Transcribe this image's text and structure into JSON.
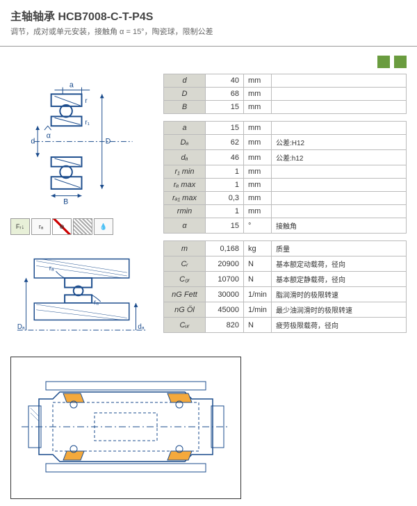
{
  "header": {
    "title_prefix": "主轴轴承 ",
    "title_model": "HCB7008-C-T-P4S",
    "subtitle": "调节，成对或单元安装，接触角 α = 15°，陶瓷球，限制公差"
  },
  "tables": {
    "main_dims": [
      {
        "sym": "d",
        "val": "40",
        "unit": "mm",
        "desc": ""
      },
      {
        "sym": "D",
        "val": "68",
        "unit": "mm",
        "desc": ""
      },
      {
        "sym": "B",
        "val": "15",
        "unit": "mm",
        "desc": ""
      }
    ],
    "secondary_dims": [
      {
        "sym": "a",
        "val": "15",
        "unit": "mm",
        "desc": ""
      },
      {
        "sym": "Dₐ",
        "val": "62",
        "unit": "mm",
        "desc": "公差:H12"
      },
      {
        "sym": "dₐ",
        "val": "46",
        "unit": "mm",
        "desc": "公差:h12"
      },
      {
        "sym": "r₁ min",
        "val": "1",
        "unit": "mm",
        "desc": ""
      },
      {
        "sym": "rₐ max",
        "val": "1",
        "unit": "mm",
        "desc": ""
      },
      {
        "sym": "rₐ₁ max",
        "val": "0,3",
        "unit": "mm",
        "desc": ""
      },
      {
        "sym": "rmin",
        "val": "1",
        "unit": "mm",
        "desc": ""
      },
      {
        "sym": "α",
        "val": "15",
        "unit": "°",
        "desc": "接触角"
      }
    ],
    "performance": [
      {
        "sym": "m",
        "val": "0,168",
        "unit": "kg",
        "desc": "质量"
      },
      {
        "sym": "Cᵣ",
        "val": "20900",
        "unit": "N",
        "desc": "基本额定动载荷，径向"
      },
      {
        "sym": "C₀ᵣ",
        "val": "10700",
        "unit": "N",
        "desc": "基本额定静载荷，径向"
      },
      {
        "sym": "nG Fett",
        "val": "30000",
        "unit": "1/min",
        "desc": "脂润滑时的极限转速"
      },
      {
        "sym": "nG Öl",
        "val": "45000",
        "unit": "1/min",
        "desc": "最少油润滑时的极限转速"
      },
      {
        "sym": "Cᵤᵣ",
        "val": "820",
        "unit": "N",
        "desc": "疲劳极限载荷，径向"
      }
    ]
  },
  "diagram_labels": {
    "d": "d",
    "D": "D",
    "B": "B",
    "a": "a",
    "r": "r",
    "Da": "Dₐ",
    "da": "dₐ",
    "ra": "rₐ",
    "alpha": "α",
    "F": "Fᵣ"
  }
}
